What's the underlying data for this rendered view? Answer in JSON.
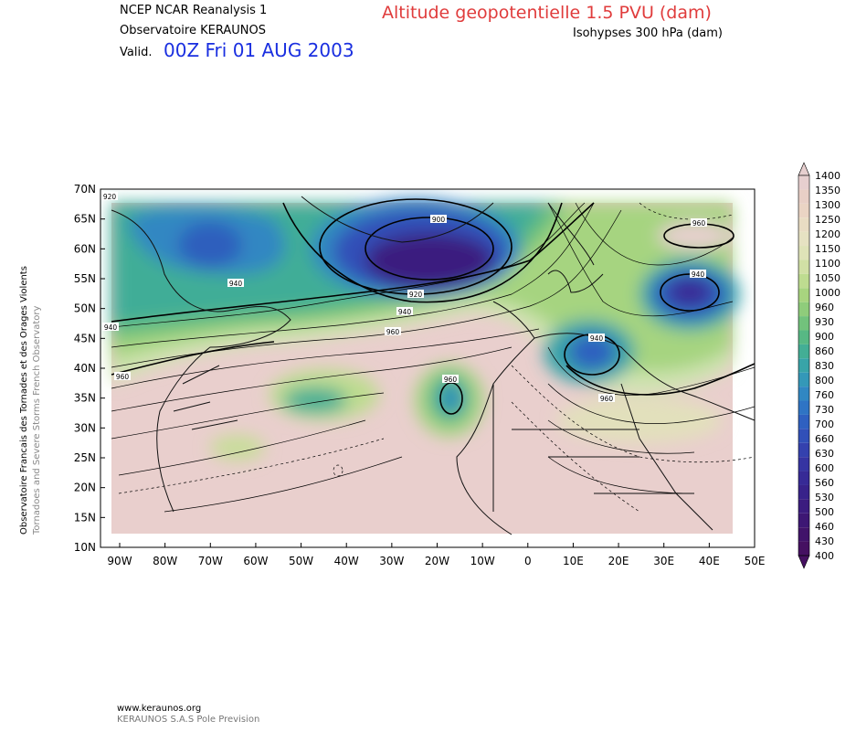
{
  "header": {
    "model": "NCEP NCAR Reanalysis 1",
    "observatory": "Observatoire KERAUNOS",
    "valid_label": "Valid.",
    "valid_date": "00Z Fri 01 AUG 2003",
    "main_title": "Altitude geopotentielle 1.5 PVU (dam)",
    "subtitle": "Isohypses 300 hPa (dam)"
  },
  "side_text": {
    "line1": "Observatoire Francais des Tornades et des Orages Violents",
    "line2": "Tornadoes and Severe Storms French Observatory"
  },
  "map": {
    "lat_ticks": [
      "70N",
      "65N",
      "60N",
      "55N",
      "50N",
      "45N",
      "40N",
      "35N",
      "30N",
      "25N",
      "20N",
      "15N",
      "10N"
    ],
    "lon_ticks": [
      "90W",
      "80W",
      "70W",
      "60W",
      "50W",
      "40W",
      "30W",
      "20W",
      "10W",
      "0",
      "10E",
      "20E",
      "30E",
      "40E",
      "50E"
    ],
    "contour_labels": [
      {
        "text": "920"
      },
      {
        "text": "900"
      },
      {
        "text": "960"
      },
      {
        "text": "940"
      },
      {
        "text": "920"
      },
      {
        "text": "940"
      },
      {
        "text": "960"
      },
      {
        "text": "940"
      },
      {
        "text": "960"
      },
      {
        "text": "940"
      },
      {
        "text": "940"
      },
      {
        "text": "960"
      },
      {
        "text": "960"
      },
      {
        "text": "980"
      }
    ]
  },
  "colorbar": {
    "labels": [
      "1400",
      "1350",
      "1300",
      "1250",
      "1200",
      "1150",
      "1100",
      "1050",
      "1000",
      "960",
      "930",
      "900",
      "860",
      "830",
      "800",
      "760",
      "730",
      "700",
      "660",
      "630",
      "600",
      "560",
      "530",
      "500",
      "460",
      "430",
      "400"
    ],
    "colors": [
      "#e7cfcf",
      "#e8cfc6",
      "#ead4c4",
      "#e9dcc3",
      "#e6e2c2",
      "#dfe3b8",
      "#d1e0a5",
      "#bedc90",
      "#a8d47f",
      "#8fcc7b",
      "#72c27c",
      "#57b884",
      "#43ae95",
      "#38a4a8",
      "#3498b8",
      "#3187c2",
      "#2f74c4",
      "#2f60c0",
      "#3150b8",
      "#3441ae",
      "#3634a2",
      "#372a96",
      "#38228a",
      "#3b1c7f",
      "#3d1774",
      "#41136a",
      "#451061"
    ]
  },
  "footer": {
    "url": "www.keraunos.org",
    "company": "KERAUNOS S.A.S Pole Prevision"
  }
}
